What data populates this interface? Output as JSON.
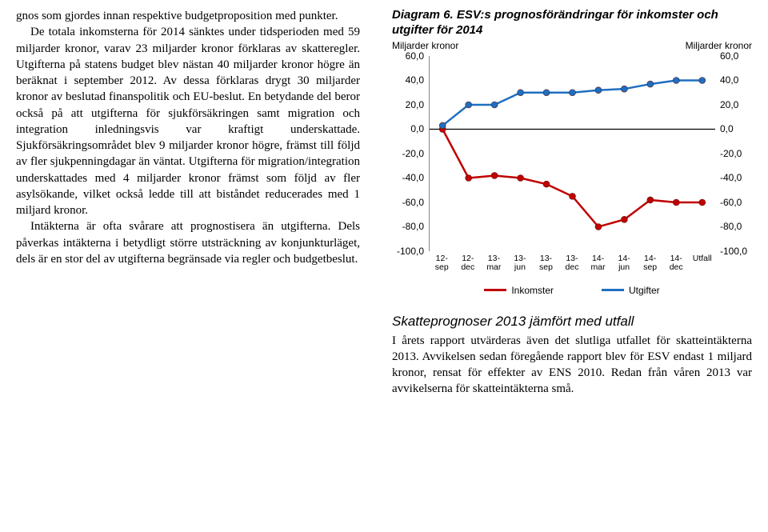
{
  "left": {
    "p1": "gnos som gjordes innan respektive budgetproposition med punkter.",
    "p2": "De totala inkomsterna för 2014 sänktes under tidsperioden med 59 miljarder kronor, varav 23 miljarder kronor förklaras av skatteregler. Utgifterna på statens budget blev nästan 40 miljarder kronor högre än beräknat i september 2012. Av dessa förklaras drygt 30 miljarder kronor av beslutad finanspolitik och EU-beslut. En betydande del beror också på att utgifterna för sjukförsäkringen samt migration och integration inledningsvis var kraftigt underskattade. Sjukförsäkringsområdet blev 9 miljarder kronor högre, främst till följd av fler sjukpenningdagar än väntat. Utgifterna för migration/integration underskattades med 4 miljarder kronor främst som följd av fler asylsökande, vilket också ledde till att biståndet reducerades med 1 miljard kronor.",
    "p3": "Intäkterna är ofta svårare att prognostisera än utgifterna. Dels påverkas intäkterna i betydligt större utsträckning av konjunkturläget, dels är en stor del av utgifterna begränsade via regler och budgetbeslut."
  },
  "chart": {
    "title": "Diagram 6. ESV:s prognosförändringar för inkomster och utgifter för 2014",
    "y_unit_left": "Miljarder kronor",
    "y_unit_right": "Miljarder kronor",
    "ymin": -100,
    "ymax": 60,
    "ystep": 20,
    "yticks_display": [
      "60,0",
      "40,0",
      "20,0",
      "0,0",
      "-20,0",
      "-40,0",
      "-60,0",
      "-80,0",
      "-100,0"
    ],
    "xcats": [
      "12-\nsep",
      "12-\ndec",
      "13-\nmar",
      "13-\njun",
      "13-\nsep",
      "13-\ndec",
      "14-\nmar",
      "14-\njun",
      "14-\nsep",
      "14-\ndec",
      "Utfall"
    ],
    "series": {
      "inkomster": {
        "label": "Inkomster",
        "color": "#c00000",
        "values": [
          0,
          -40,
          -38,
          -40,
          -45,
          -55,
          -80,
          -74,
          -58,
          -60,
          -60
        ]
      },
      "utgifter": {
        "label": "Utgifter",
        "color": "#1f6fc0",
        "values": [
          3,
          20,
          20,
          30,
          30,
          30,
          32,
          33,
          37,
          40,
          40
        ]
      }
    },
    "background_color": "#ffffff",
    "axis_color": "#888888",
    "zero_line_color": "#000000",
    "marker_radius": 4,
    "line_width": 2.5
  },
  "right": {
    "section_title": "Skatteprognoser 2013 jämfört med utfall",
    "body": "I årets rapport utvärderas även det slutliga utfallet för skatteintäkterna 2013. Avvikelsen sedan föregående rapport blev för ESV endast 1 miljard kronor, rensat för effekter av ENS 2010. Redan från våren 2013 var avvikelserna för skatteintäkterna små."
  }
}
